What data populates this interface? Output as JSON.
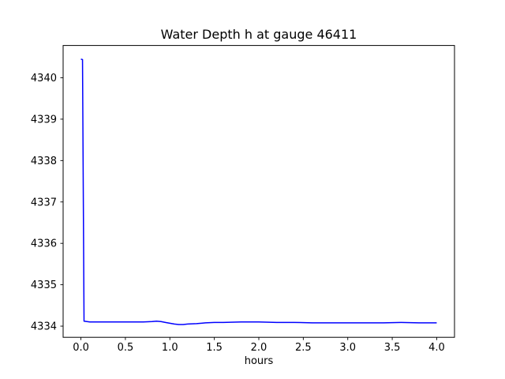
{
  "figure": {
    "background": "#ffffff",
    "axis_color": "#000000",
    "text_color": "#000000"
  },
  "chart_data": {
    "type": "line",
    "title": "Water Depth h at gauge 46411",
    "xlabel": "hours",
    "ylabel": "",
    "xlim": [
      -0.2,
      4.2
    ],
    "ylim": [
      4333.73,
      4340.78
    ],
    "grid": false,
    "legend": "none",
    "x_ticks": [
      0.0,
      0.5,
      1.0,
      1.5,
      2.0,
      2.5,
      3.0,
      3.5,
      4.0
    ],
    "x_tick_labels": [
      "0.0",
      "0.5",
      "1.0",
      "1.5",
      "2.0",
      "2.5",
      "3.0",
      "3.5",
      "4.0"
    ],
    "y_ticks": [
      4334,
      4335,
      4336,
      4337,
      4338,
      4339,
      4340
    ],
    "y_tick_labels": [
      "4334",
      "4335",
      "4336",
      "4337",
      "4338",
      "4339",
      "4340"
    ],
    "series": [
      {
        "name": "h",
        "color": "#0000ff",
        "line_width": 1.5,
        "x": [
          0.0,
          0.018,
          0.035,
          0.1,
          0.2,
          0.3,
          0.4,
          0.5,
          0.6,
          0.7,
          0.8,
          0.85,
          0.9,
          0.95,
          1.0,
          1.05,
          1.1,
          1.15,
          1.2,
          1.3,
          1.4,
          1.5,
          1.6,
          1.8,
          2.0,
          2.2,
          2.4,
          2.6,
          2.8,
          3.0,
          3.2,
          3.4,
          3.6,
          3.8,
          3.9,
          4.0
        ],
        "y": [
          4340.45,
          4340.44,
          4334.12,
          4334.1,
          4334.1,
          4334.1,
          4334.1,
          4334.1,
          4334.1,
          4334.1,
          4334.11,
          4334.12,
          4334.11,
          4334.09,
          4334.07,
          4334.05,
          4334.04,
          4334.04,
          4334.05,
          4334.06,
          4334.08,
          4334.09,
          4334.09,
          4334.1,
          4334.1,
          4334.09,
          4334.09,
          4334.08,
          4334.08,
          4334.08,
          4334.08,
          4334.08,
          4334.09,
          4334.08,
          4334.08,
          4334.08
        ]
      }
    ]
  }
}
